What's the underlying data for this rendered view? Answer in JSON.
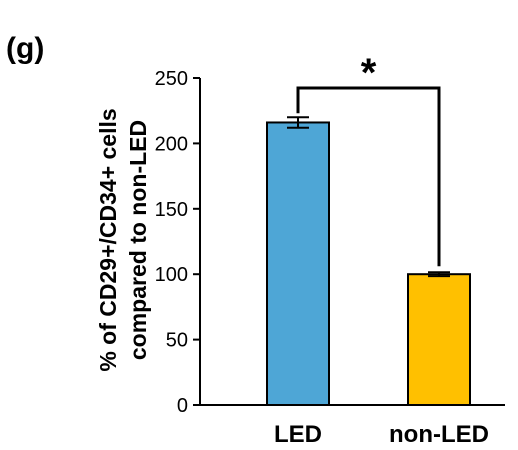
{
  "panel_label": "(g)",
  "chart_data": {
    "type": "bar",
    "categories": [
      "LED",
      "non-LED"
    ],
    "values": [
      216,
      100
    ],
    "errors": [
      4,
      1.5
    ],
    "colors": [
      "#4ea6d6",
      "#ffc000"
    ],
    "ylabel_lines": [
      "% of CD29+/CD34+ cells",
      "compared to non-LED"
    ],
    "xlabel": "",
    "ylim": [
      0,
      250
    ],
    "yticks": [
      0,
      50,
      100,
      150,
      200,
      250
    ],
    "significance": "*",
    "grid": false
  }
}
